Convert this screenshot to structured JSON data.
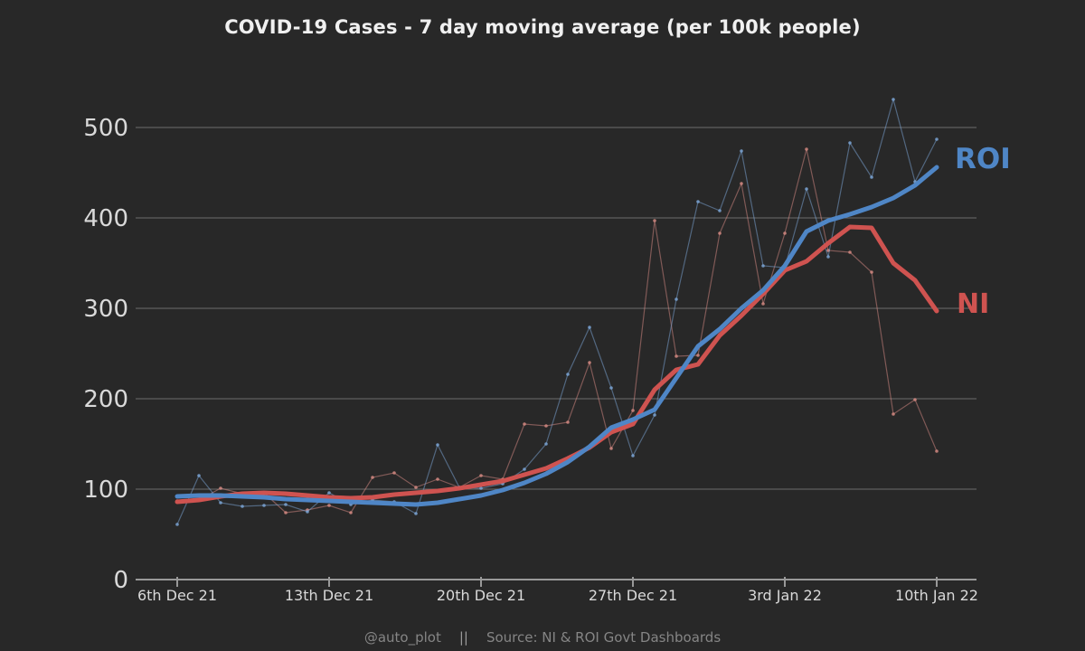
{
  "window": {
    "background": "#282828"
  },
  "header": {
    "title": "COVID-19 Cases - 7 day moving average (per 100k people)"
  },
  "series_labels": {
    "roi": "ROI",
    "ni": "NI"
  },
  "footer": {
    "handle": "@auto_plot",
    "separator": "||",
    "source": "Source: NI & ROI Govt Dashboards"
  },
  "colors": {
    "roi": "#4f86c6",
    "roi_daily": "#7da7d9",
    "ni": "#cf5350",
    "ni_daily": "#d98c85",
    "grid": "rgba(255,255,255,0.32)",
    "axis": "#999999",
    "tick_text": "#d9d9d9",
    "title_text": "#f0f0f0",
    "footer_text": "#858585"
  },
  "chart_data": {
    "type": "line",
    "title": "COVID-19 Cases - 7 day moving average (per 100k people)",
    "xlabel": "",
    "ylabel": "",
    "x_tick_labels": [
      "6th Dec 21",
      "13th Dec 21",
      "20th Dec 21",
      "27th Dec 21",
      "3rd Jan 22",
      "10th Jan 22"
    ],
    "x_tick_day_index": [
      0,
      7,
      14,
      21,
      28,
      35
    ],
    "n_days": 36,
    "date_range": "6th Dec 21 to 10th Jan 22",
    "y_ticks": [
      0,
      100,
      200,
      300,
      400,
      500
    ],
    "ylim": [
      0,
      551
    ],
    "grid": "horizontal-only",
    "legend_position": "labels-at-line-ends-right",
    "series": [
      {
        "name": "ROI daily",
        "role": "daily",
        "color_key": "roi_daily",
        "values": [
          61,
          115,
          85,
          81,
          82,
          83,
          75,
          96,
          83,
          88,
          86,
          73,
          149,
          102,
          101,
          106,
          122,
          150,
          227,
          279,
          212,
          137,
          182,
          310,
          418,
          408,
          474,
          347,
          345,
          432,
          357,
          483,
          445,
          531,
          440,
          487
        ]
      },
      {
        "name": "ROI 7-day moving average",
        "role": "avg",
        "color_key": "roi",
        "values": [
          92,
          93,
          93,
          92,
          91,
          89,
          88,
          87,
          86,
          85,
          84,
          83,
          85,
          89,
          93,
          99,
          107,
          117,
          130,
          147,
          168,
          177,
          188,
          223,
          258,
          277,
          300,
          320,
          347,
          385,
          397,
          404,
          412,
          422,
          436,
          456
        ]
      },
      {
        "name": "NI daily",
        "role": "daily",
        "color_key": "ni_daily",
        "values": [
          87,
          88,
          101,
          95,
          96,
          74,
          77,
          82,
          74,
          113,
          118,
          102,
          111,
          102,
          115,
          111,
          172,
          170,
          174,
          240,
          145,
          187,
          397,
          247,
          248,
          383,
          438,
          305,
          383,
          476,
          364,
          362,
          340,
          183,
          199,
          142
        ]
      },
      {
        "name": "NI 7-day moving average",
        "role": "avg",
        "color_key": "ni",
        "values": [
          86,
          88,
          92,
          95,
          96,
          95,
          93,
          91,
          90,
          91,
          94,
          96,
          98,
          101,
          105,
          109,
          116,
          123,
          134,
          146,
          163,
          172,
          210,
          232,
          238,
          270,
          292,
          316,
          342,
          352,
          372,
          390,
          389,
          350,
          331,
          297
        ]
      }
    ]
  }
}
